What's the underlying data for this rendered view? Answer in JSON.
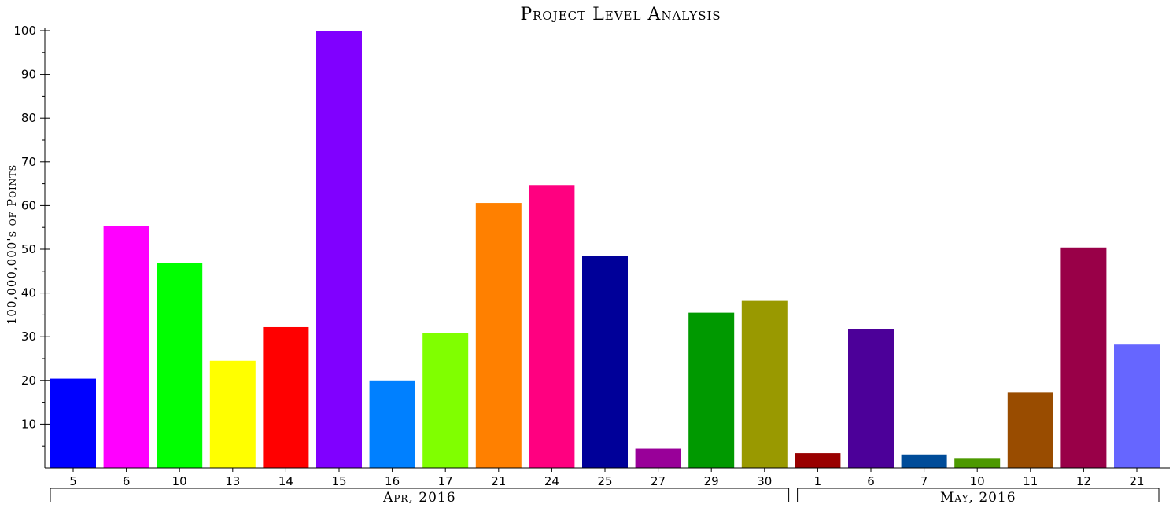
{
  "chart_data": {
    "type": "bar",
    "title": "Project Level Analysis",
    "xlabel": "",
    "ylabel": "100,000,000's of Points",
    "ylim": [
      0,
      100
    ],
    "yticks": [
      10,
      20,
      30,
      40,
      50,
      60,
      70,
      80,
      90,
      100
    ],
    "grid": false,
    "legend": "none",
    "categories": [
      "5",
      "6",
      "10",
      "13",
      "14",
      "15",
      "16",
      "17",
      "21",
      "24",
      "25",
      "27",
      "29",
      "30",
      "1",
      "6",
      "7",
      "10",
      "11",
      "12",
      "21"
    ],
    "values": [
      20.4,
      55.3,
      46.9,
      24.5,
      32.2,
      100,
      20.0,
      30.8,
      60.6,
      64.7,
      48.4,
      4.4,
      35.5,
      38.2,
      3.4,
      31.8,
      3.1,
      2.1,
      17.2,
      50.4,
      28.2
    ],
    "colors": [
      "#0000ff",
      "#ff00ff",
      "#00ff00",
      "#ffff00",
      "#ff0000",
      "#8000ff",
      "#0080ff",
      "#80ff00",
      "#ff8000",
      "#ff0080",
      "#000099",
      "#990099",
      "#009900",
      "#999900",
      "#990000",
      "#4c0099",
      "#004c99",
      "#4c9900",
      "#994c00",
      "#990048",
      "#6666ff"
    ],
    "groups": [
      {
        "label": "Apr, 2016",
        "start": 0,
        "end": 13
      },
      {
        "label": "May, 2016",
        "start": 14,
        "end": 20
      }
    ]
  }
}
